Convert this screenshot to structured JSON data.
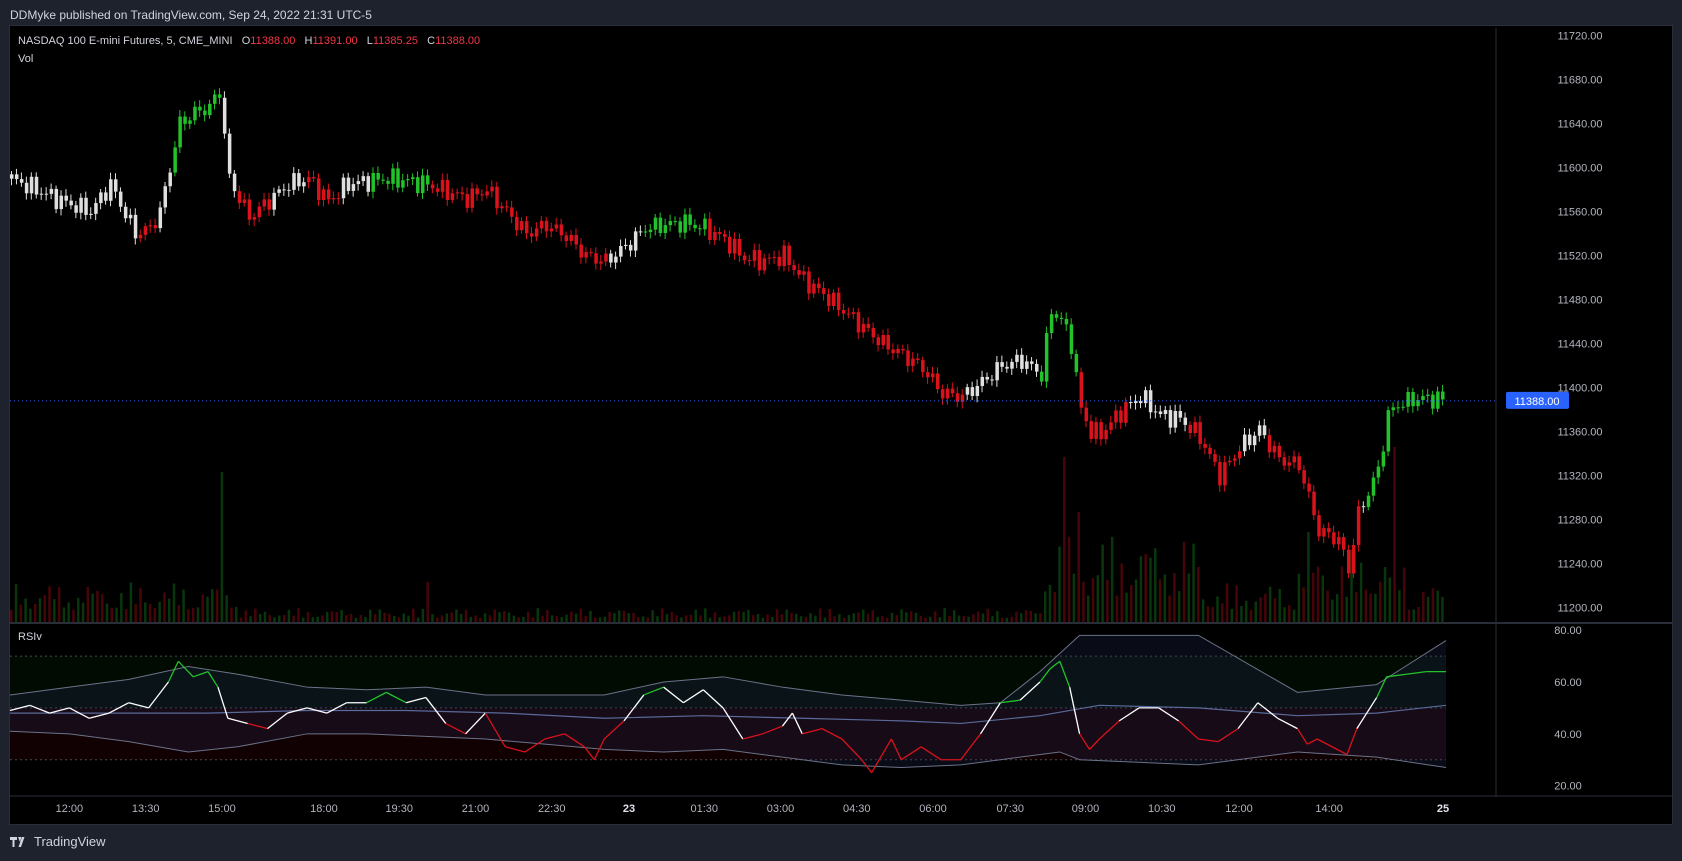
{
  "header": {
    "published_text": "DDMyke published on TradingView.com, Sep 24, 2022 21:31 UTC-5"
  },
  "legend": {
    "symbol": "NASDAQ 100 E-mini Futures, 5, CME_MINI",
    "o_label": "O",
    "o_value": "11388.00",
    "h_label": "H",
    "h_value": "11391.00",
    "l_label": "L",
    "l_value": "11385.25",
    "c_label": "C",
    "c_value": "11388.00",
    "vol_label": "Vol"
  },
  "rsi_panel": {
    "label": "RSIv"
  },
  "footer": {
    "brand": "TradingView"
  },
  "colors": {
    "background": "#000000",
    "frame": "#1e222d",
    "up": "#22c32a",
    "down": "#d9121b",
    "neutral": "#e0e0e0",
    "rsi_line": "#ffffff",
    "band": "#6b7289",
    "last_price_badge": "#2962ff"
  },
  "chart_data": [
    {
      "type": "candlestick",
      "title": "NASDAQ 100 E-mini Futures, 5, CME_MINI",
      "x_tick_labels": [
        "12:00",
        "13:30",
        "15:00",
        "18:00",
        "19:30",
        "21:00",
        "22:30",
        "23",
        "01:30",
        "03:00",
        "04:30",
        "06:00",
        "07:30",
        "09:00",
        "10:30",
        "12:00",
        "14:00",
        "25"
      ],
      "y_tick_labels": [
        "11720.00",
        "11680.00",
        "11640.00",
        "11600.00",
        "11560.00",
        "11520.00",
        "11480.00",
        "11440.00",
        "11400.00",
        "11360.00",
        "11320.00",
        "11280.00",
        "11240.00",
        "11200.00"
      ],
      "ylim": [
        11187,
        11727
      ],
      "last_price": 11388.0,
      "last_price_label": "11388.00",
      "close_path": [
        [
          0,
          11590
        ],
        [
          50,
          11570
        ],
        [
          80,
          11560
        ],
        [
          100,
          11585
        ],
        [
          125,
          11540
        ],
        [
          140,
          11545
        ],
        [
          150,
          11560
        ],
        [
          160,
          11600
        ],
        [
          170,
          11640
        ],
        [
          185,
          11650
        ],
        [
          200,
          11655
        ],
        [
          210,
          11670
        ],
        [
          220,
          11590
        ],
        [
          240,
          11555
        ],
        [
          260,
          11570
        ],
        [
          280,
          11585
        ],
        [
          300,
          11590
        ],
        [
          320,
          11570
        ],
        [
          340,
          11585
        ],
        [
          360,
          11588
        ],
        [
          380,
          11590
        ],
        [
          400,
          11588
        ],
        [
          420,
          11585
        ],
        [
          440,
          11578
        ],
        [
          460,
          11572
        ],
        [
          480,
          11580
        ],
        [
          500,
          11560
        ],
        [
          520,
          11540
        ],
        [
          540,
          11548
        ],
        [
          560,
          11538
        ],
        [
          580,
          11520
        ],
        [
          600,
          11515
        ],
        [
          620,
          11528
        ],
        [
          640,
          11545
        ],
        [
          660,
          11548
        ],
        [
          680,
          11550
        ],
        [
          700,
          11545
        ],
        [
          720,
          11535
        ],
        [
          740,
          11518
        ],
        [
          760,
          11515
        ],
        [
          780,
          11520
        ],
        [
          800,
          11498
        ],
        [
          820,
          11485
        ],
        [
          840,
          11470
        ],
        [
          860,
          11455
        ],
        [
          880,
          11440
        ],
        [
          900,
          11430
        ],
        [
          920,
          11418
        ],
        [
          940,
          11395
        ],
        [
          960,
          11392
        ],
        [
          980,
          11405
        ],
        [
          1000,
          11420
        ],
        [
          1020,
          11425
        ],
        [
          1040,
          11412
        ],
        [
          1050,
          11470
        ],
        [
          1060,
          11462
        ],
        [
          1070,
          11440
        ],
        [
          1080,
          11380
        ],
        [
          1090,
          11360
        ],
        [
          1100,
          11358
        ],
        [
          1120,
          11378
        ],
        [
          1140,
          11392
        ],
        [
          1160,
          11375
        ],
        [
          1180,
          11372
        ],
        [
          1200,
          11355
        ],
        [
          1220,
          11320
        ],
        [
          1240,
          11345
        ],
        [
          1260,
          11362
        ],
        [
          1280,
          11335
        ],
        [
          1300,
          11330
        ],
        [
          1310,
          11300
        ],
        [
          1320,
          11270
        ],
        [
          1340,
          11262
        ],
        [
          1350,
          11235
        ],
        [
          1360,
          11285
        ],
        [
          1380,
          11325
        ],
        [
          1390,
          11375
        ],
        [
          1400,
          11385
        ],
        [
          1420,
          11390
        ],
        [
          1440,
          11390
        ],
        [
          1450,
          11388
        ]
      ],
      "up_segments": [
        [
          165,
          212
        ],
        [
          365,
          420
        ],
        [
          640,
          700
        ],
        [
          1040,
          1075
        ],
        [
          1370,
          1450
        ]
      ],
      "down_segments": [
        [
          130,
          145
        ],
        [
          230,
          262
        ],
        [
          300,
          330
        ],
        [
          420,
          500
        ],
        [
          500,
          600
        ],
        [
          690,
          740
        ],
        [
          740,
          870
        ],
        [
          860,
          960
        ],
        [
          1075,
          1125
        ],
        [
          1190,
          1240
        ],
        [
          1270,
          1360
        ]
      ],
      "volume": {
        "series_hint": "volume bars coloured by candle direction",
        "spikes": [
          [
            215,
            150
          ],
          [
            420,
            40
          ],
          [
            1065,
            165
          ],
          [
            1080,
            110
          ],
          [
            1310,
            90
          ],
          [
            1395,
            175
          ]
        ]
      }
    },
    {
      "type": "line",
      "title": "RSIv",
      "y_tick_labels": [
        "80.00",
        "60.00",
        "40.00",
        "20.00"
      ],
      "ylim": [
        16,
        82
      ],
      "levels": [
        70,
        50,
        30
      ],
      "series": [
        {
          "role": "rsi",
          "values": [
            [
              0,
              49
            ],
            [
              20,
              51
            ],
            [
              40,
              48
            ],
            [
              60,
              50
            ],
            [
              80,
              46
            ],
            [
              100,
              48
            ],
            [
              120,
              52
            ],
            [
              140,
              50
            ],
            [
              160,
              60
            ],
            [
              170,
              68
            ],
            [
              185,
              62
            ],
            [
              200,
              64
            ],
            [
              210,
              58
            ],
            [
              220,
              46
            ],
            [
              240,
              44
            ],
            [
              260,
              42
            ],
            [
              280,
              48
            ],
            [
              300,
              50
            ],
            [
              320,
              48
            ],
            [
              340,
              52
            ],
            [
              360,
              52
            ],
            [
              380,
              56
            ],
            [
              400,
              52
            ],
            [
              420,
              54
            ],
            [
              440,
              44
            ],
            [
              460,
              40
            ],
            [
              480,
              48
            ],
            [
              500,
              35
            ],
            [
              520,
              33
            ],
            [
              540,
              38
            ],
            [
              560,
              40
            ],
            [
              580,
              35
            ],
            [
              590,
              30
            ],
            [
              600,
              38
            ],
            [
              620,
              45
            ],
            [
              640,
              55
            ],
            [
              660,
              58
            ],
            [
              680,
              52
            ],
            [
              700,
              57
            ],
            [
              720,
              50
            ],
            [
              740,
              38
            ],
            [
              760,
              40
            ],
            [
              780,
              43
            ],
            [
              790,
              48
            ],
            [
              800,
              40
            ],
            [
              820,
              42
            ],
            [
              840,
              38
            ],
            [
              860,
              30
            ],
            [
              870,
              25
            ],
            [
              890,
              38
            ],
            [
              900,
              30
            ],
            [
              920,
              35
            ],
            [
              940,
              30
            ],
            [
              960,
              30
            ],
            [
              980,
              40
            ],
            [
              1000,
              52
            ],
            [
              1020,
              53
            ],
            [
              1040,
              60
            ],
            [
              1050,
              65
            ],
            [
              1060,
              68
            ],
            [
              1070,
              58
            ],
            [
              1080,
              40
            ],
            [
              1090,
              34
            ],
            [
              1100,
              38
            ],
            [
              1120,
              45
            ],
            [
              1140,
              50
            ],
            [
              1160,
              50
            ],
            [
              1180,
              45
            ],
            [
              1200,
              38
            ],
            [
              1220,
              37
            ],
            [
              1240,
              42
            ],
            [
              1260,
              52
            ],
            [
              1280,
              46
            ],
            [
              1300,
              42
            ],
            [
              1310,
              36
            ],
            [
              1320,
              38
            ],
            [
              1340,
              34
            ],
            [
              1350,
              32
            ],
            [
              1360,
              42
            ],
            [
              1380,
              54
            ],
            [
              1390,
              62
            ],
            [
              1410,
              63
            ],
            [
              1430,
              64
            ],
            [
              1450,
              64
            ]
          ]
        },
        {
          "role": "upper_band",
          "values": [
            [
              0,
              55
            ],
            [
              60,
              58
            ],
            [
              120,
              61
            ],
            [
              180,
              66
            ],
            [
              230,
              63
            ],
            [
              300,
              58
            ],
            [
              360,
              57
            ],
            [
              420,
              58
            ],
            [
              480,
              55
            ],
            [
              540,
              55
            ],
            [
              600,
              55
            ],
            [
              660,
              60
            ],
            [
              720,
              62
            ],
            [
              780,
              58
            ],
            [
              840,
              55
            ],
            [
              900,
              53
            ],
            [
              960,
              51
            ],
            [
              1000,
              52
            ],
            [
              1040,
              64
            ],
            [
              1080,
              78
            ],
            [
              1200,
              78
            ],
            [
              1300,
              56
            ],
            [
              1380,
              59
            ],
            [
              1450,
              76
            ]
          ]
        },
        {
          "role": "basis",
          "values": [
            [
              0,
              48
            ],
            [
              200,
              48
            ],
            [
              300,
              49
            ],
            [
              400,
              49
            ],
            [
              500,
              48
            ],
            [
              600,
              46
            ],
            [
              700,
              47
            ],
            [
              800,
              46
            ],
            [
              900,
              45
            ],
            [
              960,
              44
            ],
            [
              1040,
              47
            ],
            [
              1100,
              51
            ],
            [
              1200,
              50
            ],
            [
              1300,
              47
            ],
            [
              1380,
              48
            ],
            [
              1450,
              51
            ]
          ]
        },
        {
          "role": "lower_band",
          "values": [
            [
              0,
              41
            ],
            [
              60,
              40
            ],
            [
              120,
              37
            ],
            [
              180,
              33
            ],
            [
              230,
              35
            ],
            [
              300,
              40
            ],
            [
              360,
              40
            ],
            [
              420,
              39
            ],
            [
              480,
              38
            ],
            [
              540,
              36
            ],
            [
              600,
              34
            ],
            [
              660,
              33
            ],
            [
              720,
              34
            ],
            [
              780,
              31
            ],
            [
              840,
              28
            ],
            [
              900,
              27
            ],
            [
              960,
              28
            ],
            [
              1000,
              30
            ],
            [
              1060,
              33
            ],
            [
              1080,
              30
            ],
            [
              1200,
              28
            ],
            [
              1300,
              33
            ],
            [
              1380,
              31
            ],
            [
              1450,
              27
            ]
          ]
        }
      ]
    }
  ]
}
